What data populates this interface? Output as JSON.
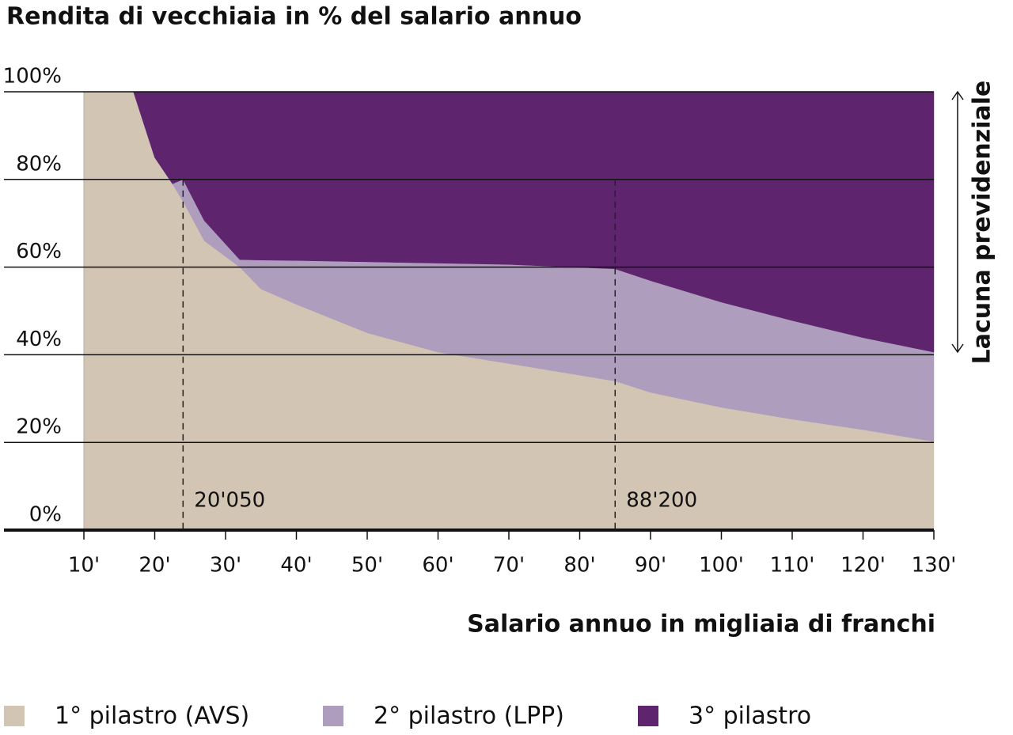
{
  "chart_data": {
    "type": "stacked-area",
    "title": "Rendita di vecchiaia in % del salario annuo",
    "x_label": "Salario annuo in migliaia di franchi",
    "side_label": "Lacuna previdenziale",
    "x": [
      10,
      17,
      20,
      22.5,
      24,
      27,
      32,
      35,
      40,
      50,
      60,
      70,
      85,
      90,
      100,
      110,
      120,
      130
    ],
    "series": [
      {
        "name": "1° pilastro (AVS)",
        "color": "#d3c5b4",
        "values": [
          100,
          100,
          85,
          79,
          75,
          66,
          60,
          55,
          51.5,
          45,
          40.6,
          38,
          34,
          31.4,
          28,
          25.3,
          22.9,
          20.2
        ]
      },
      {
        "name": "2° pilastro (LPP)",
        "color": "#ae9dbc",
        "values": [
          0,
          0,
          0,
          0,
          5,
          4.6,
          1.7,
          6.6,
          10,
          16.2,
          20.3,
          22.6,
          25.6,
          25.5,
          24,
          22.5,
          21,
          20.4
        ]
      },
      {
        "name": "3° pilastro",
        "color": "#5e246e",
        "values": [
          0,
          0,
          15,
          21,
          20,
          29.4,
          38.3,
          38.4,
          38.5,
          38.8,
          39.1,
          39.4,
          40.4,
          43.1,
          48,
          52.2,
          56.1,
          59.4
        ]
      }
    ],
    "annotations": [
      {
        "x": 24,
        "text": "20'050"
      },
      {
        "x": 85,
        "text": "88'200"
      }
    ],
    "xlim": [
      10,
      130
    ],
    "xticks": [
      {
        "value": 10,
        "label": "10'"
      },
      {
        "value": 20,
        "label": "20'"
      },
      {
        "value": 30,
        "label": "30'"
      },
      {
        "value": 40,
        "label": "40'"
      },
      {
        "value": 50,
        "label": "50'"
      },
      {
        "value": 60,
        "label": "60'"
      },
      {
        "value": 70,
        "label": "70'"
      },
      {
        "value": 80,
        "label": "80'"
      },
      {
        "value": 90,
        "label": "90'"
      },
      {
        "value": 100,
        "label": "100'"
      },
      {
        "value": 110,
        "label": "110'"
      },
      {
        "value": 120,
        "label": "120'"
      },
      {
        "value": 130,
        "label": "130'"
      }
    ],
    "ylim": [
      0,
      100
    ],
    "yticks": [
      {
        "value": 0,
        "label": "0%"
      },
      {
        "value": 20,
        "label": "20%"
      },
      {
        "value": 40,
        "label": "40%"
      },
      {
        "value": 60,
        "label": "60%"
      },
      {
        "value": 80,
        "label": "80%"
      },
      {
        "value": 100,
        "label": "100%"
      }
    ],
    "grid": true
  }
}
